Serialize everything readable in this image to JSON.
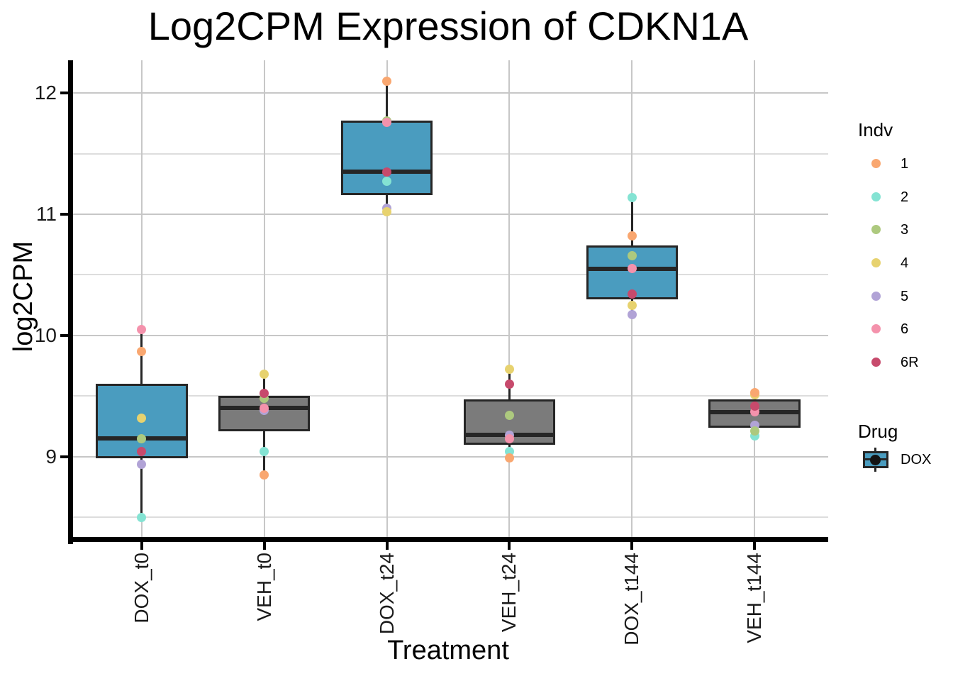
{
  "chart_data": {
    "type": "boxplot",
    "title": "Log2CPM Expression of CDKN1A",
    "xlabel": "Treatment",
    "ylabel": "log2CPM",
    "ylim": [
      8.32,
      12.27
    ],
    "y_major_ticks": [
      9,
      10,
      11,
      12
    ],
    "y_minor_ticks": [
      8.5,
      9.5,
      10.5,
      11.5
    ],
    "grid": true,
    "legend_position": "right",
    "categories": [
      "DOX_t0",
      "VEH_t0",
      "DOX_t24",
      "VEH_t24",
      "DOX_t144",
      "VEH_t144"
    ],
    "indv_colors": {
      "1": "#F9A770",
      "2": "#84E3D3",
      "3": "#ADC97E",
      "4": "#E7D26F",
      "5": "#B1A3D6",
      "6": "#F492AC",
      "6R": "#C74A6C"
    },
    "drug_fills": {
      "DOX": "#4A9CBF",
      "VEH": "#7B7B7B"
    },
    "groups": [
      {
        "category": "DOX_t0",
        "drug": "DOX",
        "stats": {
          "whisker_low": 8.5,
          "q1": 8.99,
          "median": 9.15,
          "q3": 9.6,
          "whisker_high": 10.05
        },
        "points": [
          {
            "indv": "1",
            "value": 9.87
          },
          {
            "indv": "2",
            "value": 8.5
          },
          {
            "indv": "3",
            "value": 9.15
          },
          {
            "indv": "4",
            "value": 9.32
          },
          {
            "indv": "5",
            "value": 8.94
          },
          {
            "indv": "6",
            "value": 10.05
          },
          {
            "indv": "6R",
            "value": 9.04
          }
        ]
      },
      {
        "category": "VEH_t0",
        "drug": "VEH",
        "stats": {
          "whisker_low": 8.85,
          "q1": 9.21,
          "median": 9.4,
          "q3": 9.5,
          "whisker_high": 9.68
        },
        "points": [
          {
            "indv": "1",
            "value": 8.85
          },
          {
            "indv": "2",
            "value": 9.04
          },
          {
            "indv": "3",
            "value": 9.48
          },
          {
            "indv": "4",
            "value": 9.68
          },
          {
            "indv": "5",
            "value": 9.38
          },
          {
            "indv": "6",
            "value": 9.4
          },
          {
            "indv": "6R",
            "value": 9.52
          }
        ]
      },
      {
        "category": "DOX_t24",
        "drug": "DOX",
        "stats": {
          "whisker_low": 11.02,
          "q1": 11.16,
          "median": 11.35,
          "q3": 11.77,
          "whisker_high": 12.1
        },
        "points": [
          {
            "indv": "1",
            "value": 12.1
          },
          {
            "indv": "2",
            "value": 11.27
          },
          {
            "indv": "3",
            "value": 11.77
          },
          {
            "indv": "4",
            "value": 11.02
          },
          {
            "indv": "5",
            "value": 11.05
          },
          {
            "indv": "6",
            "value": 11.76
          },
          {
            "indv": "6R",
            "value": 11.35
          }
        ]
      },
      {
        "category": "VEH_t24",
        "drug": "VEH",
        "stats": {
          "whisker_low": 8.99,
          "q1": 9.1,
          "median": 9.18,
          "q3": 9.47,
          "whisker_high": 9.72
        },
        "points": [
          {
            "indv": "1",
            "value": 8.99
          },
          {
            "indv": "2",
            "value": 9.04
          },
          {
            "indv": "3",
            "value": 9.34
          },
          {
            "indv": "4",
            "value": 9.72
          },
          {
            "indv": "5",
            "value": 9.18
          },
          {
            "indv": "6",
            "value": 9.15
          },
          {
            "indv": "6R",
            "value": 9.6
          }
        ]
      },
      {
        "category": "DOX_t144",
        "drug": "DOX",
        "stats": {
          "whisker_low": 10.17,
          "q1": 10.3,
          "median": 10.55,
          "q3": 10.74,
          "whisker_high": 11.14
        },
        "points": [
          {
            "indv": "1",
            "value": 10.82
          },
          {
            "indv": "2",
            "value": 11.14
          },
          {
            "indv": "3",
            "value": 10.66
          },
          {
            "indv": "4",
            "value": 10.25
          },
          {
            "indv": "5",
            "value": 10.17
          },
          {
            "indv": "6",
            "value": 10.55
          },
          {
            "indv": "6R",
            "value": 10.34
          }
        ]
      },
      {
        "category": "VEH_t144",
        "drug": "VEH",
        "stats": {
          "whisker_low": 9.17,
          "q1": 9.24,
          "median": 9.37,
          "q3": 9.47,
          "whisker_high": 9.53
        },
        "points": [
          {
            "indv": "1",
            "value": 9.53
          },
          {
            "indv": "2",
            "value": 9.17
          },
          {
            "indv": "3",
            "value": 9.21
          },
          {
            "indv": "4",
            "value": 9.51
          },
          {
            "indv": "5",
            "value": 9.26
          },
          {
            "indv": "6",
            "value": 9.37
          },
          {
            "indv": "6R",
            "value": 9.42
          }
        ]
      }
    ]
  },
  "legend": {
    "indv_title": "Indv",
    "indv_items": [
      {
        "label": "1",
        "color": "#F9A770"
      },
      {
        "label": "2",
        "color": "#84E3D3"
      },
      {
        "label": "3",
        "color": "#ADC97E"
      },
      {
        "label": "4",
        "color": "#E7D26F"
      },
      {
        "label": "5",
        "color": "#B1A3D6"
      },
      {
        "label": "6",
        "color": "#F492AC"
      },
      {
        "label": "6R",
        "color": "#C74A6C"
      }
    ],
    "drug_title": "Drug",
    "drug_items": [
      {
        "label": "DOX",
        "fill": "#4A9CBF"
      }
    ]
  },
  "colors": {
    "box_border": "#262626",
    "grid_major": "#C7C7C7",
    "grid_minor": "#DDDDDD",
    "axis_line": "#000000",
    "background": "#FFFFFF"
  }
}
